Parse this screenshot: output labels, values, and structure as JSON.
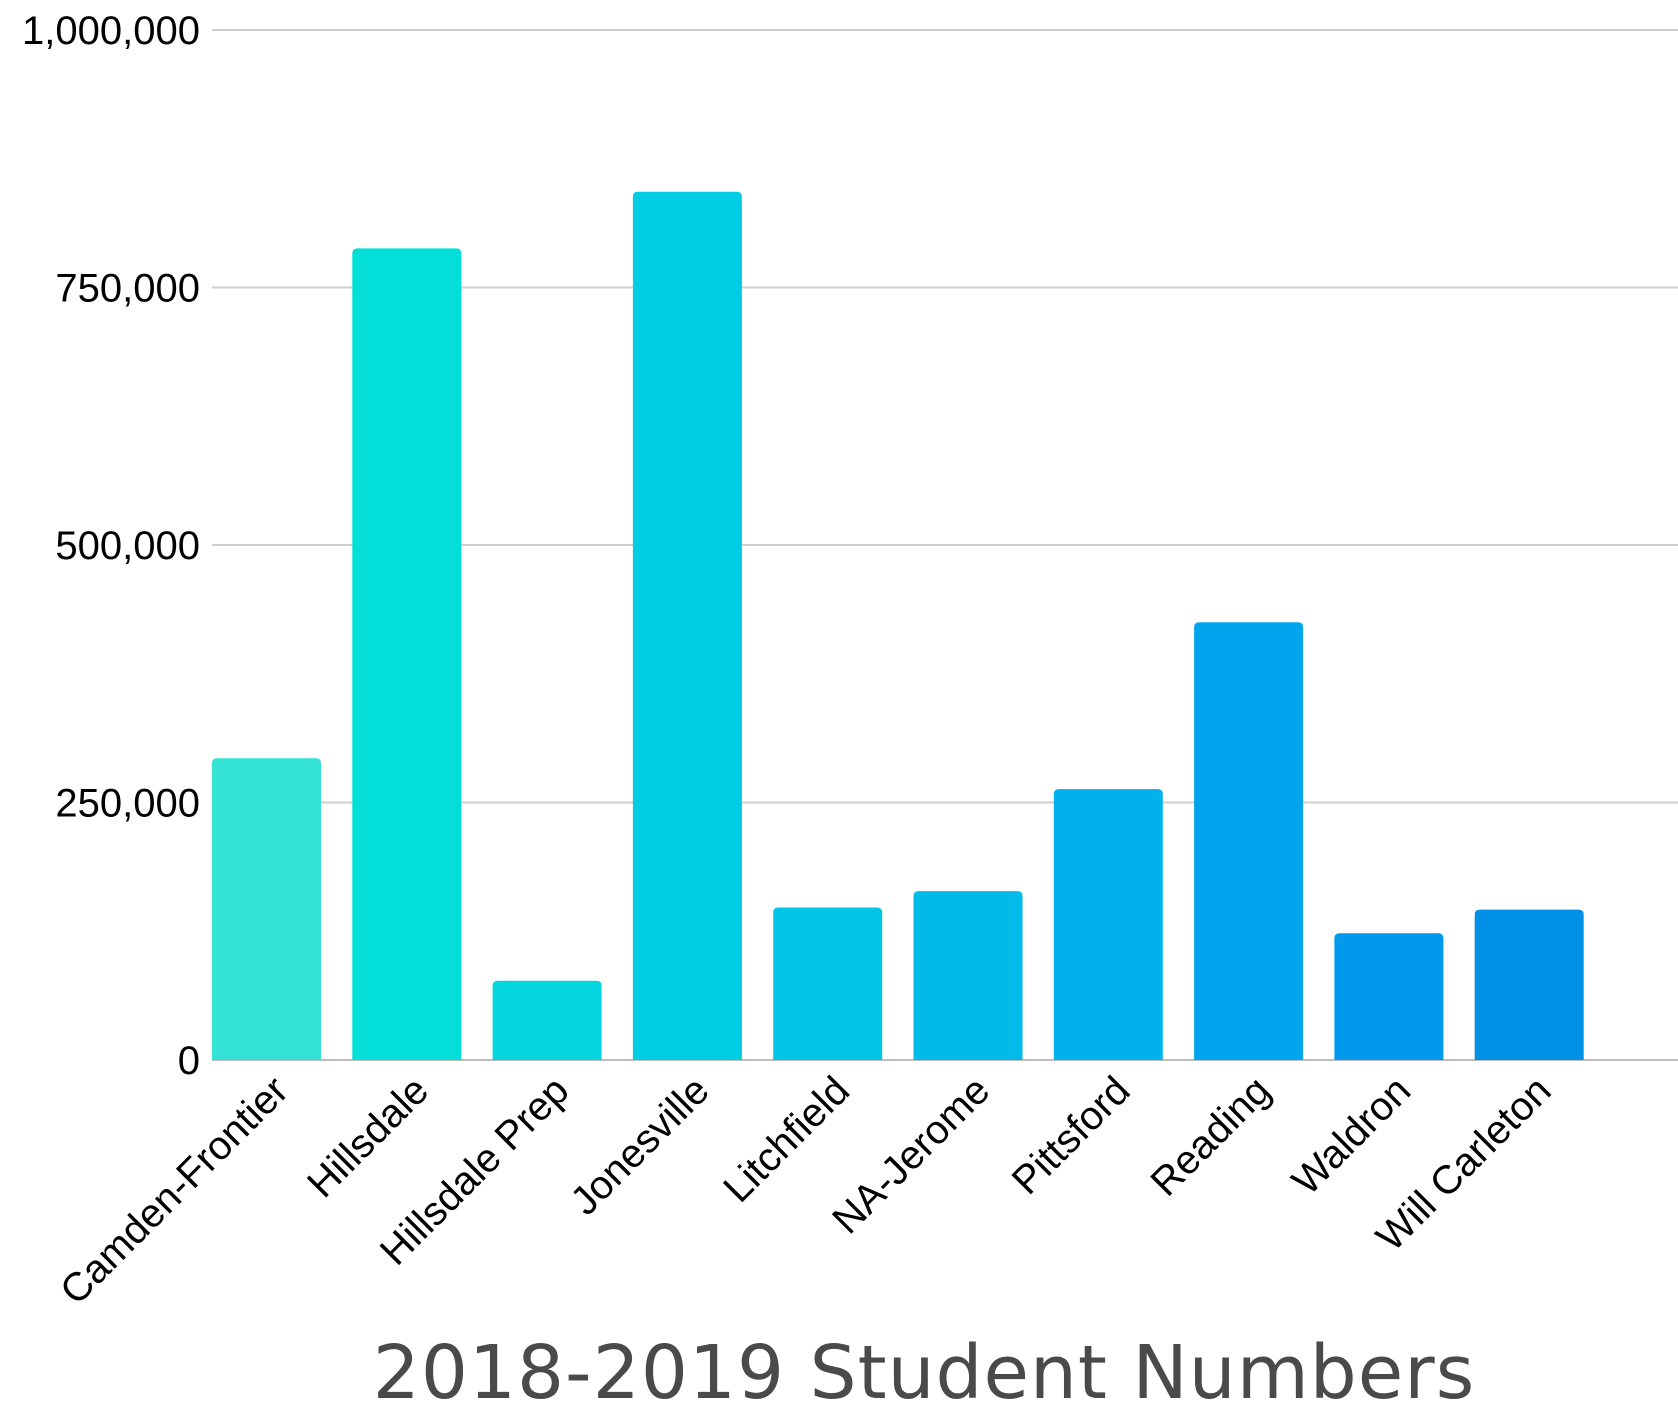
{
  "chart_data": {
    "type": "bar",
    "title": "2018-2019 Student Numbers",
    "xlabel": "",
    "ylabel": "",
    "ylim": [
      0,
      1000000
    ],
    "yticks": [
      0,
      250000,
      500000,
      750000,
      1000000
    ],
    "ytick_labels": [
      "0",
      "250,000",
      "500,000",
      "750,000",
      "1,000,000"
    ],
    "grid": true,
    "legend": "none",
    "categories": [
      "Camden-Frontier",
      "Hillsdale",
      "Hillsdale Prep",
      "Jonesville",
      "Litchfield",
      "NA-Jerome",
      "Pittsford",
      "Reading",
      "Waldron",
      "Will Carleton"
    ],
    "values": [
      293000,
      788000,
      77000,
      843000,
      148000,
      164000,
      263000,
      425000,
      123000,
      146000
    ],
    "colors": [
      "#33e3d6",
      "#04ded8",
      "#03d6de",
      "#00cde4",
      "#00c5e7",
      "#00bbe9",
      "#00b1ec",
      "#00a5ed",
      "#0099ec",
      "#0090e8"
    ]
  }
}
